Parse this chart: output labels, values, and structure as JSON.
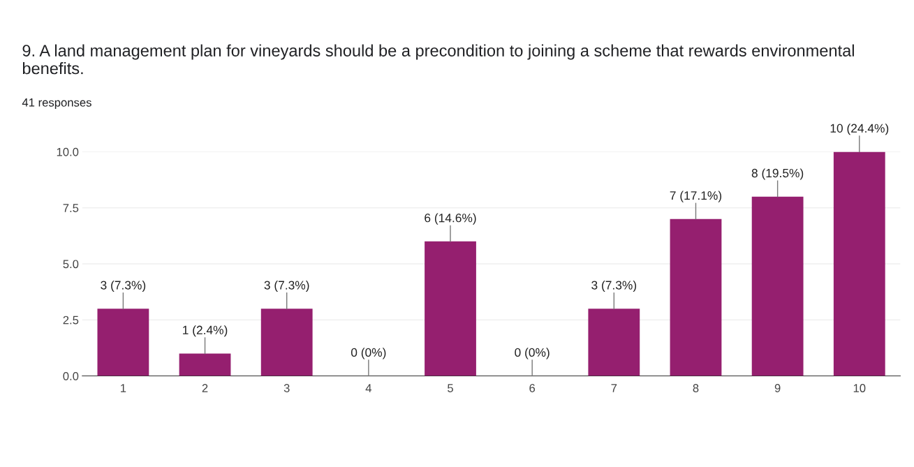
{
  "chart_data": {
    "type": "bar",
    "title": "9. A land management plan for vineyards should be a precondition to joining a scheme that rewards environmental benefits.",
    "subtitle": "41 responses",
    "categories": [
      "1",
      "2",
      "3",
      "4",
      "5",
      "6",
      "7",
      "8",
      "9",
      "10"
    ],
    "values": [
      3,
      1,
      3,
      0,
      6,
      0,
      3,
      7,
      8,
      10
    ],
    "value_labels": [
      "3 (7.3%)",
      "1 (2.4%)",
      "3 (7.3%)",
      "0 (0%)",
      "6 (14.6%)",
      "0 (0%)",
      "3 (7.3%)",
      "7 (17.1%)",
      "8 (19.5%)",
      "10 (24.4%)"
    ],
    "color": "#951f6f",
    "ylim": [
      0,
      10
    ],
    "yticks": [
      {
        "value": 0,
        "label": "0.0"
      },
      {
        "value": 2.5,
        "label": "2.5"
      },
      {
        "value": 5,
        "label": "5.0"
      },
      {
        "value": 7.5,
        "label": "7.5"
      },
      {
        "value": 10,
        "label": "10.0"
      }
    ],
    "grid": "y",
    "legend": false
  }
}
